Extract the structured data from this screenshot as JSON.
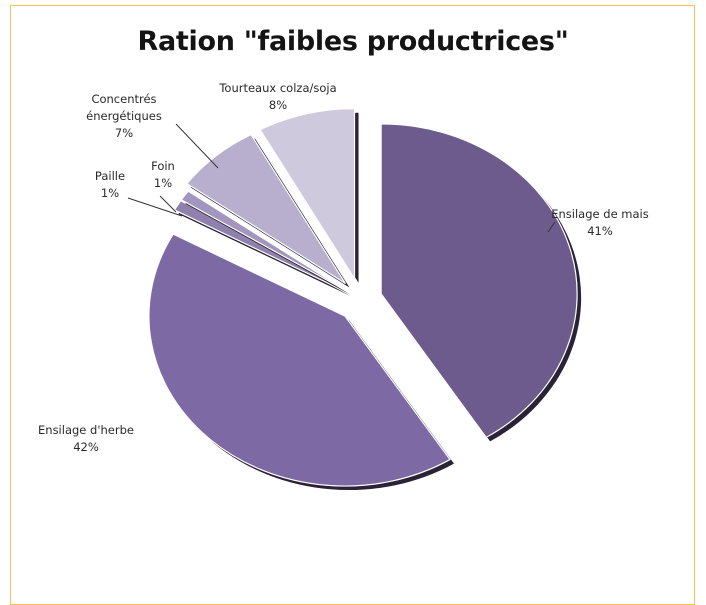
{
  "chart_data": {
    "type": "pie",
    "title": "Ration \"faibles productrices\"",
    "slices": [
      {
        "label": "Ensilage de mais",
        "value": 41,
        "value_label": "41%",
        "color": "#6c5b8c"
      },
      {
        "label": "Ensilage d'herbe",
        "value": 42,
        "value_label": "42%",
        "color": "#7d6aa5"
      },
      {
        "label": "Paille",
        "value": 1,
        "value_label": "1%",
        "color": "#8f80ae"
      },
      {
        "label": "Foin",
        "value": 1,
        "value_label": "1%",
        "color": "#a396be"
      },
      {
        "label": "Concentrés énergétiques",
        "value": 7,
        "value_label": "7%",
        "color": "#b8aecd"
      },
      {
        "label": "Tourteaux colza/soja",
        "value": 8,
        "value_label": "8%",
        "color": "#cfc9dd"
      }
    ],
    "legend": "none",
    "exploded": true
  }
}
